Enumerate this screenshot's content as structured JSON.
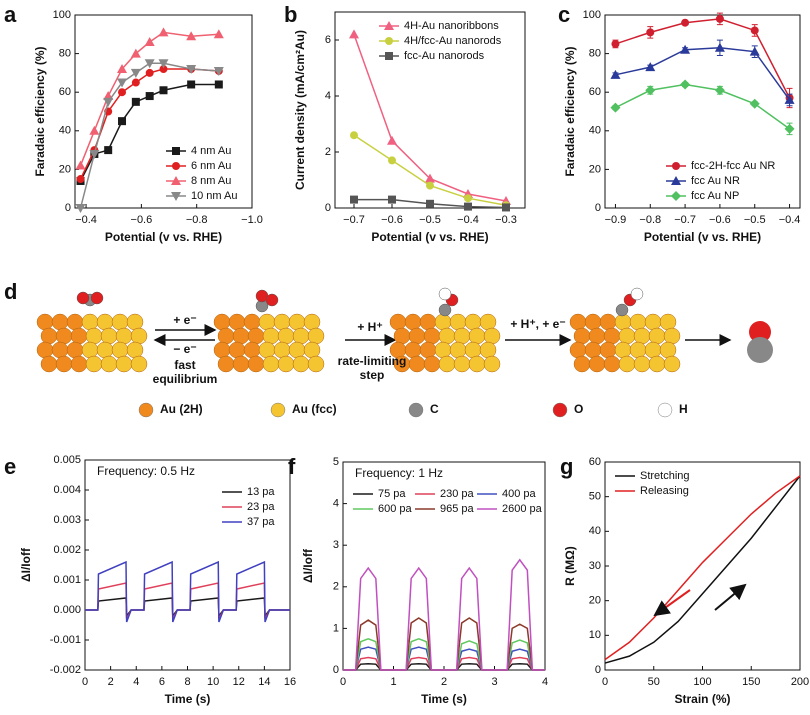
{
  "chart_data": [
    {
      "panel": "a",
      "type": "line",
      "x_label": "Potential (v vs. RHE)",
      "y_label": "Faradaic efficiency (%)",
      "x": [
        -0.38,
        -0.43,
        -0.48,
        -0.53,
        -0.58,
        -0.63,
        -0.68,
        -0.78,
        -0.88
      ],
      "xlim": [
        -0.36,
        -1.0
      ],
      "xticks": [
        {
          "value": -0.4,
          "label": "−0.4"
        },
        {
          "value": -0.6,
          "label": "−0.6"
        },
        {
          "value": -0.8,
          "label": "−0.8"
        },
        {
          "value": -1.0,
          "label": "−1.0"
        }
      ],
      "ylim": [
        0,
        100
      ],
      "yticks": [
        0,
        20,
        40,
        60,
        80,
        100
      ],
      "legend": "lower right",
      "series": [
        {
          "name": "4 nm Au",
          "color": "#1a1a1a",
          "marker": "square",
          "values": [
            14,
            28,
            30,
            45,
            55,
            58,
            61,
            64,
            64
          ]
        },
        {
          "name": "6 nm Au",
          "color": "#e02020",
          "marker": "circle",
          "values": [
            15,
            30,
            50,
            60,
            65,
            70,
            72,
            72,
            71
          ]
        },
        {
          "name": "8 nm Au",
          "color": "#f06070",
          "marker": "triangle",
          "values": [
            22,
            40,
            58,
            72,
            80,
            86,
            91,
            89,
            90
          ]
        },
        {
          "name": "10 nm Au",
          "color": "#888888",
          "marker": "triangle-down",
          "values": [
            0,
            28,
            55,
            65,
            70,
            75,
            75,
            72,
            71
          ]
        }
      ]
    },
    {
      "panel": "b",
      "type": "line",
      "x_label": "Potential (v vs. RHE)",
      "y_label": "Current density (mA/cm²Au)",
      "x": [
        -0.7,
        -0.6,
        -0.5,
        -0.4,
        -0.3
      ],
      "xlim": [
        -0.75,
        -0.25
      ],
      "xticks": [
        {
          "value": -0.7,
          "label": "−0.7"
        },
        {
          "value": -0.6,
          "label": "−0.6"
        },
        {
          "value": -0.5,
          "label": "−0.5"
        },
        {
          "value": -0.4,
          "label": "−0.4"
        },
        {
          "value": -0.3,
          "label": "−0.3"
        }
      ],
      "ylim": [
        0,
        7
      ],
      "yticks": [
        0,
        2,
        4,
        6
      ],
      "legend": "upper right",
      "series": [
        {
          "name": "4H-Au nanoribbons",
          "color": "#f06080",
          "marker": "triangle",
          "values": [
            6.2,
            2.4,
            1.05,
            0.5,
            0.25
          ]
        },
        {
          "name": "4H/fcc-Au nanorods",
          "color": "#c8d040",
          "marker": "circle",
          "values": [
            2.6,
            1.7,
            0.8,
            0.35,
            0.1
          ]
        },
        {
          "name": "fcc-Au nanorods",
          "color": "#555555",
          "marker": "square",
          "values": [
            0.3,
            0.3,
            0.15,
            0.05,
            0.02
          ]
        }
      ]
    },
    {
      "panel": "c",
      "type": "line",
      "x_label": "Potential (v vs. RHE)",
      "y_label": "Faradaic efficiency (%)",
      "x": [
        -0.9,
        -0.8,
        -0.7,
        -0.6,
        -0.5,
        -0.4
      ],
      "xlim": [
        -0.93,
        -0.37
      ],
      "xticks": [
        {
          "value": -0.9,
          "label": "−0.9"
        },
        {
          "value": -0.8,
          "label": "−0.8"
        },
        {
          "value": -0.7,
          "label": "−0.7"
        },
        {
          "value": -0.6,
          "label": "−0.6"
        },
        {
          "value": -0.5,
          "label": "−0.5"
        },
        {
          "value": -0.4,
          "label": "−0.4"
        }
      ],
      "ylim": [
        0,
        100
      ],
      "yticks": [
        0,
        20,
        40,
        60,
        80,
        100
      ],
      "legend": "lower right",
      "series": [
        {
          "name": "fcc-2H-fcc Au NR",
          "color": "#d02030",
          "marker": "circle",
          "values": [
            85,
            91,
            96,
            98,
            92,
            57
          ],
          "errors": [
            2,
            3,
            1,
            3,
            3,
            5
          ]
        },
        {
          "name": "fcc Au NR",
          "color": "#2a3a9a",
          "marker": "triangle",
          "values": [
            69,
            73,
            82,
            83,
            81,
            56
          ],
          "errors": [
            1,
            1,
            1,
            4,
            3,
            3
          ]
        },
        {
          "name": "fcc Au NP",
          "color": "#50c060",
          "marker": "diamond",
          "values": [
            52,
            61,
            64,
            61,
            54,
            41
          ],
          "errors": [
            1,
            2,
            1,
            2,
            1,
            3
          ]
        }
      ]
    },
    {
      "panel": "e",
      "type": "line",
      "x_label": "Time (s)",
      "y_label": "ΔI/Ioff",
      "annotation": "Frequency: 0.5 Hz",
      "x": [
        0,
        1.0,
        1.05,
        3.2,
        3.25,
        3.6,
        4.6,
        4.65,
        6.8,
        6.85,
        7.2,
        8.2,
        8.25,
        10.4,
        10.45,
        10.8,
        11.8,
        11.85,
        14.0,
        14.05,
        14.4,
        16
      ],
      "xlim": [
        0,
        16
      ],
      "xticks": [
        0,
        2,
        4,
        6,
        8,
        10,
        12,
        14,
        16
      ],
      "ylim": [
        -0.002,
        0.005
      ],
      "yticks": [
        -0.002,
        -0.001,
        {
          "value": 0,
          "label": "0.000"
        },
        0.001,
        0.002,
        0.003,
        0.004,
        0.005
      ],
      "legend": "upper right",
      "series": [
        {
          "name": "13 pa",
          "color": "#1a1a1a",
          "values": [
            0,
            0,
            0.0003,
            0.0004,
            -0.0002,
            0,
            0,
            0.0003,
            0.0004,
            -0.0002,
            0,
            0,
            0.0003,
            0.0004,
            -0.0002,
            0,
            0,
            0.0003,
            0.0004,
            -0.0002,
            0,
            0
          ]
        },
        {
          "name": "23 pa",
          "color": "#e0405a",
          "values": [
            0,
            0,
            0.0007,
            0.0009,
            -0.0003,
            0,
            0,
            0.0007,
            0.0009,
            -0.0003,
            0,
            0,
            0.0007,
            0.0009,
            -0.0003,
            0,
            0,
            0.0007,
            0.0009,
            -0.0003,
            0,
            0
          ]
        },
        {
          "name": "37 pa",
          "color": "#4040c0",
          "values": [
            0,
            0,
            0.0012,
            0.0016,
            -0.0004,
            0,
            0,
            0.0012,
            0.0016,
            -0.0004,
            0,
            0,
            0.0012,
            0.0016,
            -0.0004,
            0,
            0,
            0.0012,
            0.0016,
            -0.0004,
            0,
            0
          ]
        }
      ]
    },
    {
      "panel": "f",
      "type": "line",
      "x_label": "Time (s)",
      "y_label": "ΔI/Ioff",
      "annotation": "Frequency: 1 Hz",
      "x": [
        0,
        0.25,
        0.35,
        0.5,
        0.65,
        0.75,
        1.25,
        1.35,
        1.5,
        1.65,
        1.75,
        2.25,
        2.35,
        2.5,
        2.65,
        2.75,
        3.25,
        3.35,
        3.5,
        3.65,
        3.75,
        4
      ],
      "xlim": [
        0,
        4
      ],
      "xticks": [
        0,
        1,
        2,
        3,
        4
      ],
      "ylim": [
        0,
        5
      ],
      "yticks": [
        0,
        1,
        2,
        3,
        4,
        5
      ],
      "legend": "upper left",
      "legend_columns": 3,
      "series": [
        {
          "name": "75 pa",
          "color": "#1a1a1a",
          "values": [
            0,
            0,
            0.14,
            0.15,
            0.14,
            0,
            0,
            0.14,
            0.15,
            0.14,
            0,
            0,
            0.14,
            0.15,
            0.14,
            0,
            0,
            0.14,
            0.15,
            0.14,
            0,
            0
          ]
        },
        {
          "name": "230 pa",
          "color": "#e0405a",
          "values": [
            0,
            0,
            0.27,
            0.3,
            0.27,
            0,
            0,
            0.27,
            0.3,
            0.27,
            0,
            0,
            0.27,
            0.3,
            0.27,
            0,
            0,
            0.27,
            0.3,
            0.27,
            0,
            0
          ]
        },
        {
          "name": "400 pa",
          "color": "#4050c0",
          "values": [
            0,
            0,
            0.5,
            0.55,
            0.5,
            0,
            0,
            0.5,
            0.55,
            0.5,
            0,
            0,
            0.45,
            0.5,
            0.45,
            0,
            0,
            0.45,
            0.5,
            0.45,
            0,
            0
          ]
        },
        {
          "name": "600 pa",
          "color": "#60c860",
          "values": [
            0,
            0,
            0.68,
            0.75,
            0.68,
            0,
            0,
            0.68,
            0.75,
            0.68,
            0,
            0,
            0.63,
            0.7,
            0.63,
            0,
            0,
            0.65,
            0.72,
            0.65,
            0,
            0
          ]
        },
        {
          "name": "965 pa",
          "color": "#8b3a2a",
          "values": [
            0,
            0,
            1.08,
            1.2,
            1.08,
            0,
            0,
            1.13,
            1.25,
            1.13,
            0,
            0,
            1.13,
            1.25,
            1.13,
            0,
            0,
            1.0,
            1.1,
            1.0,
            0,
            0
          ]
        },
        {
          "name": "2600 pa",
          "color": "#c050c0",
          "values": [
            0,
            0,
            2.2,
            2.45,
            2.2,
            0,
            0,
            2.2,
            2.45,
            2.2,
            0,
            0,
            2.2,
            2.45,
            2.2,
            0,
            0,
            2.4,
            2.65,
            2.4,
            0,
            0
          ]
        }
      ]
    },
    {
      "panel": "g",
      "type": "line",
      "x_label": "Strain (%)",
      "y_label": "R (MΩ)",
      "x": [
        0,
        25,
        50,
        75,
        100,
        125,
        150,
        175,
        200
      ],
      "xlim": [
        0,
        200
      ],
      "xticks": [
        0,
        50,
        100,
        150,
        200
      ],
      "ylim": [
        0,
        60
      ],
      "yticks": [
        0,
        10,
        20,
        30,
        40,
        50,
        60
      ],
      "legend": "upper left",
      "series": [
        {
          "name": "Stretching",
          "color": "#111111",
          "values": [
            2,
            4,
            8,
            14,
            22,
            30,
            38,
            47,
            56
          ]
        },
        {
          "name": "Releasing",
          "color": "#e02020",
          "values": [
            3,
            8,
            15,
            23,
            31,
            38,
            45,
            51,
            56
          ]
        }
      ]
    }
  ],
  "diagram": {
    "panel": "d",
    "arrow_labels": [
      "+ e⁻",
      "− e⁻",
      "+ H⁺",
      "+ H⁺, + e⁻"
    ],
    "notes": [
      [
        "fast",
        "equilibrium"
      ],
      [
        "rate-limiting",
        "step"
      ]
    ],
    "legend": [
      "Au (2H)",
      "Au (fcc)",
      "C",
      "O",
      "H"
    ]
  }
}
